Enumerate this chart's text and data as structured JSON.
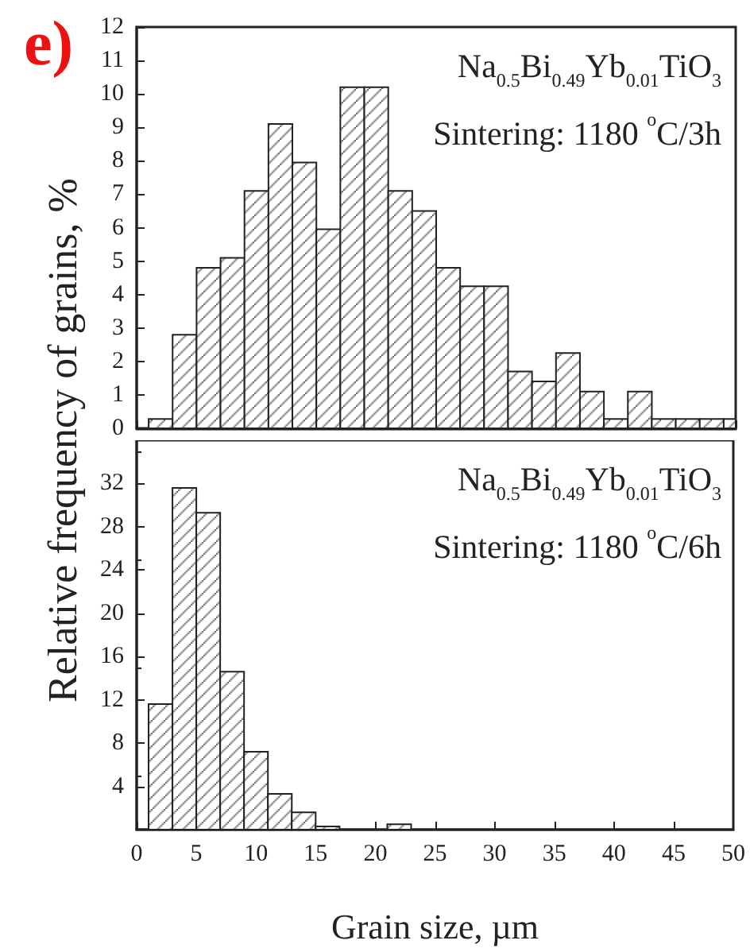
{
  "chart_data": [
    {
      "type": "histogram",
      "title": "e)",
      "ylabel": "Relative frequency of grains, %",
      "color": "#222222",
      "bins": [
        1,
        3,
        5,
        7,
        9,
        11,
        13,
        15,
        17,
        19,
        21,
        23,
        25,
        27,
        29,
        31,
        33,
        35,
        37,
        39,
        41,
        43,
        45,
        47,
        49,
        50
      ],
      "values": [
        0.28,
        2.8,
        4.8,
        5.1,
        7.1,
        9.1,
        7.95,
        5.95,
        10.2,
        10.2,
        7.1,
        6.5,
        4.8,
        4.25,
        4.25,
        1.7,
        1.4,
        2.25,
        1.1,
        0.28,
        1.1,
        0.28,
        0.28,
        0.28,
        0.28
      ],
      "xlim": [
        0,
        50
      ],
      "xticks": [
        0,
        5,
        10,
        15,
        20,
        25,
        30,
        35,
        40,
        45,
        50
      ],
      "ylim": [
        0,
        12
      ],
      "yticks": [
        0,
        1,
        2,
        3,
        4,
        5,
        6,
        7,
        8,
        9,
        10,
        11,
        12
      ],
      "tick_labels": "y",
      "grid": false,
      "annotations": [
        "Na$_{0.5}$Bi$_{0.49}$Yb$_{0.01}$TiO$_{3}$",
        "Sintering: 1180 $^{o}$C/3h"
      ]
    },
    {
      "type": "histogram",
      "xlabel": "Grain size, µm",
      "color": "#222222",
      "bins": [
        1,
        3,
        5,
        7,
        9,
        11,
        13,
        15,
        17,
        19,
        21,
        23
      ],
      "values": [
        11.6,
        31.6,
        29.3,
        14.6,
        7.2,
        3.3,
        1.6,
        0.3,
        0,
        0,
        0.5
      ],
      "xlim": [
        0,
        50
      ],
      "xticks": [
        0,
        5,
        10,
        15,
        20,
        25,
        30,
        35,
        40,
        45,
        50
      ],
      "ylim": [
        0,
        36
      ],
      "yticks": [
        4,
        8,
        12,
        16,
        20,
        24,
        28,
        32
      ],
      "grid": false,
      "annotations": [
        "Na$_{0.5}$Bi$_{0.49}$Yb$_{0.01}$TiO$_{3}$",
        "Sintering: 1180 $^{o}$C/6h"
      ]
    }
  ]
}
